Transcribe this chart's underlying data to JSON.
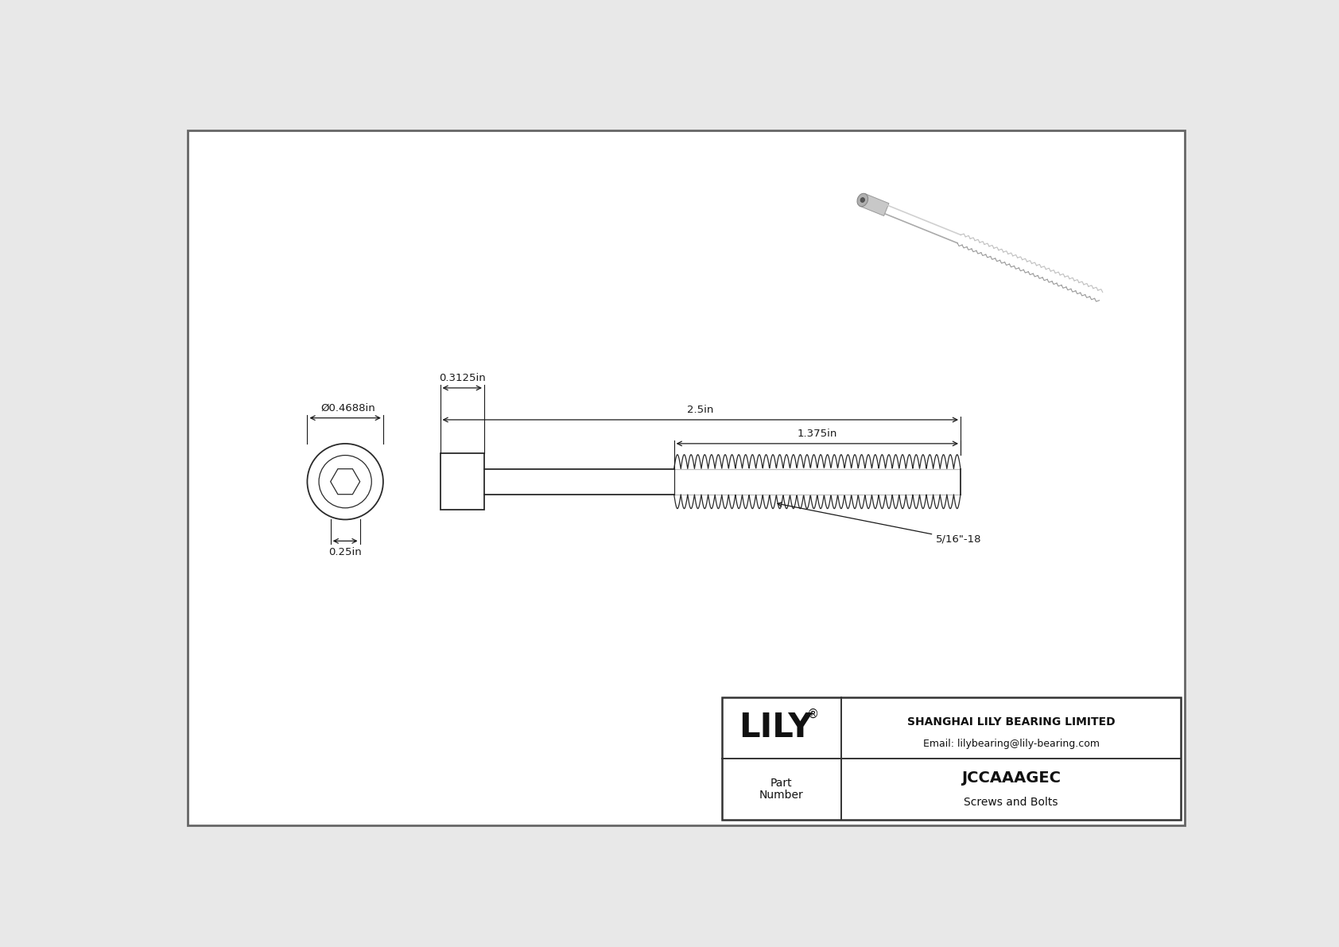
{
  "bg_color": "#e8e8e8",
  "drawing_bg": "#f5f5f5",
  "line_color": "#2a2a2a",
  "dim_color": "#1a1a1a",
  "title_company": "SHANGHAI LILY BEARING LIMITED",
  "title_email": "Email: lilybearing@lily-bearing.com",
  "part_number": "JCCAAAGEC",
  "part_category": "Screws and Bolts",
  "dim_diameter": "Ø0.4688in",
  "dim_head_height": "0.3125in",
  "dim_total_length": "2.5in",
  "dim_thread_length": "1.375in",
  "dim_socket": "0.25in",
  "dim_thread_label": "5/16\"-18",
  "logo_text": "LILY",
  "logo_symbol": "®"
}
